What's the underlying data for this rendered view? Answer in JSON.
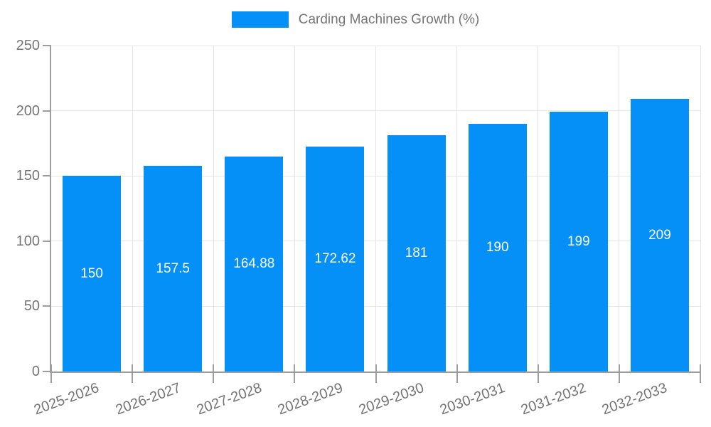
{
  "legend": {
    "label": "Carding Machines Growth (%)"
  },
  "colors": {
    "bar": "#0590f8",
    "grid": "#e6e6e6",
    "axis": "#9e9e9e",
    "tick_label": "#757575",
    "value_label": "#ffffff"
  },
  "chart_data": {
    "type": "bar",
    "title": "Carding Machines Growth (%)",
    "categories": [
      "2025-2026",
      "2026-2027",
      "2027-2028",
      "2028-2029",
      "2029-2030",
      "2030-2031",
      "2031-2032",
      "2032-2033"
    ],
    "values": [
      150,
      157.5,
      164.88,
      172.62,
      181,
      190,
      199,
      209
    ],
    "value_labels": [
      "150",
      "157.5",
      "164.88",
      "172.62",
      "181",
      "190",
      "199",
      "209"
    ],
    "y_ticks": [
      0,
      50,
      100,
      150,
      200,
      250
    ],
    "ylim": [
      0,
      250
    ],
    "xlabel": "",
    "ylabel": "",
    "grid": true,
    "legend_position": "top",
    "value_labels_position": "inside-center"
  }
}
